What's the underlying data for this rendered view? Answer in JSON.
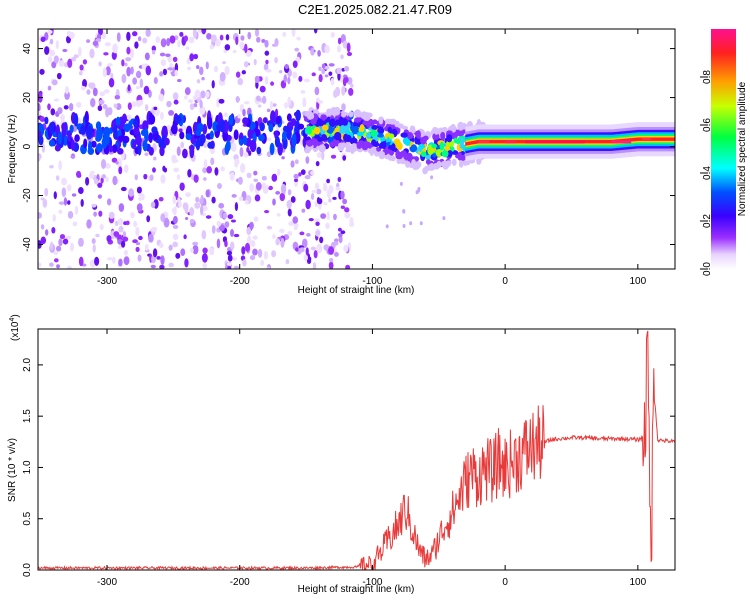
{
  "title": "C2E1.2025.082.21.47.R09",
  "chart_data": [
    {
      "type": "heatmap",
      "xlabel": "Height of straight line (km)",
      "ylabel": "Frequency (Hz)",
      "xlim": [
        -352,
        128
      ],
      "ylim": [
        -50,
        48
      ],
      "xticks": [
        -300,
        -200,
        -100,
        0,
        100
      ],
      "yticks": [
        -40,
        -20,
        0,
        20,
        40
      ],
      "colorbar": {
        "label": "Normalized spectral amplitude",
        "range": [
          0,
          1
        ],
        "ticks": [
          "0.0",
          "0.2",
          "0.4",
          "0.6",
          "0.8"
        ]
      },
      "ridge": {
        "x": [
          -350,
          -300,
          -250,
          -200,
          -150,
          -125,
          -100,
          -80,
          -60,
          -40,
          -20,
          0,
          20,
          50,
          80,
          100,
          128
        ],
        "freq": [
          5,
          5,
          5,
          5,
          6,
          7,
          5,
          2,
          -2,
          0,
          2,
          2,
          2,
          2,
          2,
          3,
          3
        ]
      }
    },
    {
      "type": "line",
      "xlabel": "Height of straight line (km)",
      "ylabel": "SNR (10 * v/v)",
      "yscale_note": "(x10",
      "yscale_exp": "4",
      "xlim": [
        -352,
        128
      ],
      "ylim": [
        0,
        2.35
      ],
      "xticks": [
        -300,
        -200,
        -100,
        0,
        100
      ],
      "yticks": [
        "0.0",
        "0.5",
        "1.0",
        "1.5",
        "2.0"
      ],
      "series": [
        {
          "name": "SNR",
          "color": "#e83a3a",
          "x": [
            -352,
            -300,
            -250,
            -200,
            -150,
            -110,
            -100,
            -95,
            -90,
            -85,
            -80,
            -75,
            -70,
            -65,
            -60,
            -55,
            -50,
            -45,
            -40,
            -35,
            -30,
            -25,
            -20,
            -15,
            -10,
            -5,
            0,
            5,
            10,
            15,
            20,
            25,
            30,
            35,
            40,
            50,
            60,
            70,
            80,
            90,
            100,
            105,
            108,
            110,
            112,
            115,
            120,
            128
          ],
          "values": [
            0.02,
            0.02,
            0.02,
            0.02,
            0.02,
            0.03,
            0.06,
            0.15,
            0.25,
            0.35,
            0.45,
            0.6,
            0.4,
            0.2,
            0.1,
            0.15,
            0.3,
            0.45,
            0.55,
            0.7,
            0.85,
            0.95,
            0.9,
            1.0,
            0.95,
            1.05,
            1.0,
            1.05,
            1.1,
            1.15,
            1.2,
            1.22,
            1.25,
            1.27,
            1.28,
            1.29,
            1.29,
            1.28,
            1.28,
            1.28,
            1.27,
            1.3,
            1.5,
            0.15,
            1.8,
            1.27,
            1.26,
            1.25
          ]
        }
      ]
    }
  ]
}
